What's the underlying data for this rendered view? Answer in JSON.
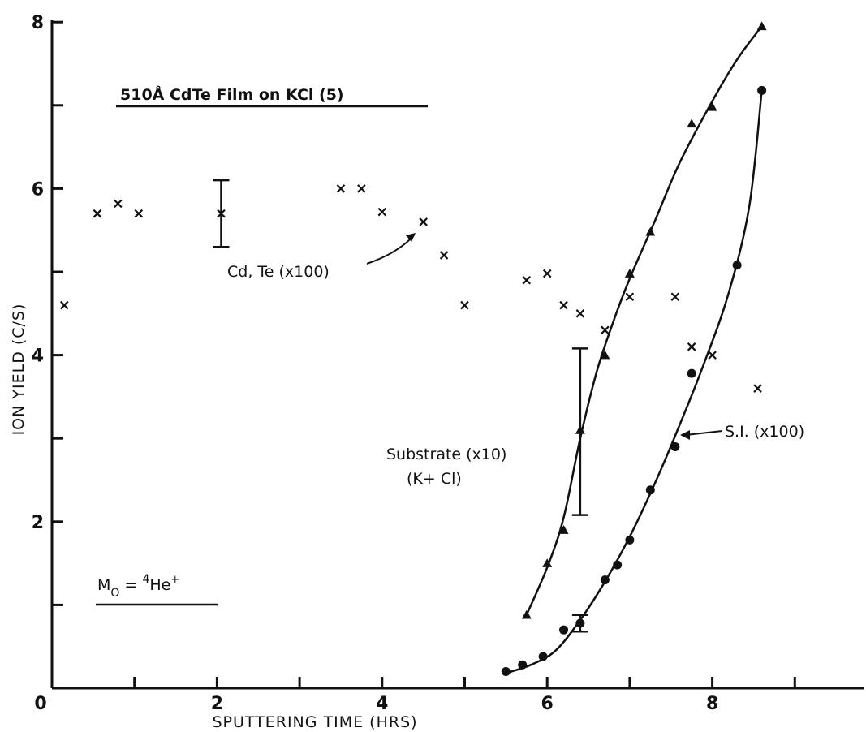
{
  "chart_data": {
    "type": "scatter",
    "title": "510Å  CdTe  Film  on  KCl  (5)",
    "xlabel": "SPUTTERING TIME (HRS)",
    "ylabel": "ION YIELD (C/S)",
    "xlim": [
      0,
      9.8
    ],
    "ylim": [
      0,
      8
    ],
    "xticks": [
      0,
      1,
      2,
      3,
      4,
      5,
      6,
      7,
      8,
      9
    ],
    "xtick_labels": [
      "0",
      "",
      "2",
      "",
      "4",
      "",
      "6",
      "",
      "8",
      ""
    ],
    "yticks": [
      0,
      1,
      2,
      3,
      4,
      5,
      6,
      7,
      8
    ],
    "ytick_labels": [
      "",
      "",
      "2",
      "",
      "4",
      "",
      "6",
      "",
      "8"
    ],
    "grid": false,
    "series": [
      {
        "name": "Cd, Te (x100)",
        "marker": "x",
        "points": [
          [
            0.15,
            4.6
          ],
          [
            0.55,
            5.7
          ],
          [
            0.8,
            5.82
          ],
          [
            1.05,
            5.7
          ],
          [
            2.05,
            5.7
          ],
          [
            3.5,
            6.0
          ],
          [
            3.75,
            6.0
          ],
          [
            4.0,
            5.72
          ],
          [
            4.5,
            5.6
          ],
          [
            4.75,
            5.2
          ],
          [
            5.0,
            4.6
          ],
          [
            5.75,
            4.9
          ],
          [
            6.0,
            4.98
          ],
          [
            6.2,
            4.6
          ],
          [
            6.4,
            4.5
          ],
          [
            6.7,
            4.3
          ],
          [
            7.0,
            4.7
          ],
          [
            7.55,
            4.7
          ],
          [
            7.75,
            4.1
          ],
          [
            8.0,
            4.0
          ],
          [
            8.55,
            3.6
          ]
        ]
      },
      {
        "name": "Substrate (x10) (K+Cl)",
        "marker": "triangle",
        "points": [
          [
            5.75,
            0.88
          ],
          [
            6.0,
            1.5
          ],
          [
            6.2,
            1.9
          ],
          [
            6.4,
            3.1
          ],
          [
            6.7,
            4.0
          ],
          [
            7.0,
            4.98
          ],
          [
            7.25,
            5.48
          ],
          [
            7.75,
            6.78
          ],
          [
            8.0,
            6.98
          ],
          [
            8.6,
            7.95
          ]
        ],
        "curve": [
          [
            5.75,
            0.88
          ],
          [
            6.0,
            1.45
          ],
          [
            6.2,
            2.05
          ],
          [
            6.4,
            3.0
          ],
          [
            6.6,
            3.8
          ],
          [
            6.8,
            4.4
          ],
          [
            7.0,
            4.92
          ],
          [
            7.3,
            5.6
          ],
          [
            7.6,
            6.3
          ],
          [
            8.0,
            7.05
          ],
          [
            8.3,
            7.55
          ],
          [
            8.6,
            7.95
          ]
        ]
      },
      {
        "name": "S.I. (x100)",
        "marker": "circle",
        "points": [
          [
            5.5,
            0.2
          ],
          [
            5.7,
            0.28
          ],
          [
            5.95,
            0.38
          ],
          [
            6.2,
            0.7
          ],
          [
            6.4,
            0.78
          ],
          [
            6.7,
            1.3
          ],
          [
            6.85,
            1.48
          ],
          [
            7.0,
            1.78
          ],
          [
            7.25,
            2.38
          ],
          [
            7.55,
            2.9
          ],
          [
            7.75,
            3.78
          ],
          [
            8.3,
            5.08
          ],
          [
            8.6,
            7.18
          ]
        ],
        "curve": [
          [
            5.5,
            0.18
          ],
          [
            5.8,
            0.28
          ],
          [
            6.1,
            0.45
          ],
          [
            6.4,
            0.82
          ],
          [
            6.7,
            1.28
          ],
          [
            7.0,
            1.82
          ],
          [
            7.3,
            2.45
          ],
          [
            7.6,
            3.15
          ],
          [
            7.9,
            3.9
          ],
          [
            8.2,
            4.75
          ],
          [
            8.45,
            5.8
          ],
          [
            8.6,
            7.18
          ]
        ]
      }
    ],
    "error_bars": [
      {
        "x": 2.05,
        "y_low": 5.3,
        "y_high": 6.1
      },
      {
        "x": 6.4,
        "y_low": 2.08,
        "y_high": 4.08
      },
      {
        "x": 6.4,
        "y_low": 0.68,
        "y_high": 0.88
      }
    ],
    "annotations": [
      {
        "text": "Cd, Te (x100)",
        "arrow_to": [
          4.45,
          5.45
        ]
      },
      {
        "text": "Substrate (x10)",
        "line2": "(K+ Cl)"
      },
      {
        "text": "S.I. (x100)",
        "arrow_to": [
          7.65,
          3.05
        ]
      },
      {
        "text": "M",
        "subscript": "O",
        "equals": " = ",
        "superscript": "4",
        "rest": "He",
        "charge": "+"
      }
    ]
  }
}
